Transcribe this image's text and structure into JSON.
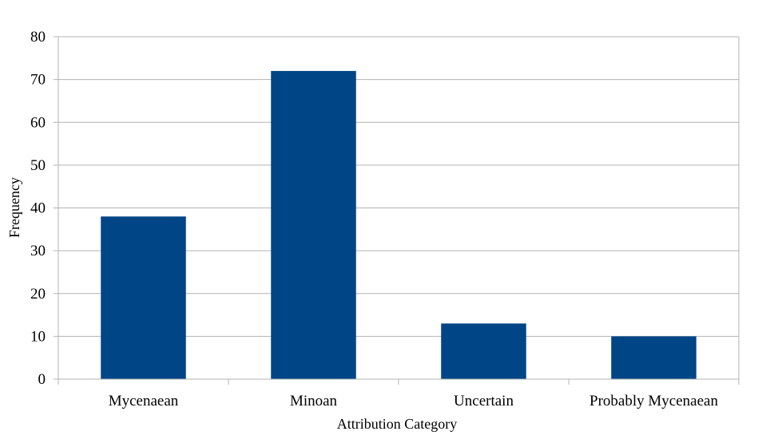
{
  "chart_data": {
    "type": "bar",
    "title": "",
    "xlabel": "Attribution Category",
    "ylabel": "Frequency",
    "categories": [
      "Mycenaean",
      "Minoan",
      "Uncertain",
      "Probably Mycenaean"
    ],
    "values": [
      38,
      72,
      13,
      10
    ],
    "ylim": [
      0,
      80
    ],
    "yticks": [
      "0",
      "10",
      "20",
      "30",
      "40",
      "50",
      "60",
      "70",
      "80"
    ],
    "grid": true,
    "legend": "none",
    "bar_color": "#004586"
  }
}
